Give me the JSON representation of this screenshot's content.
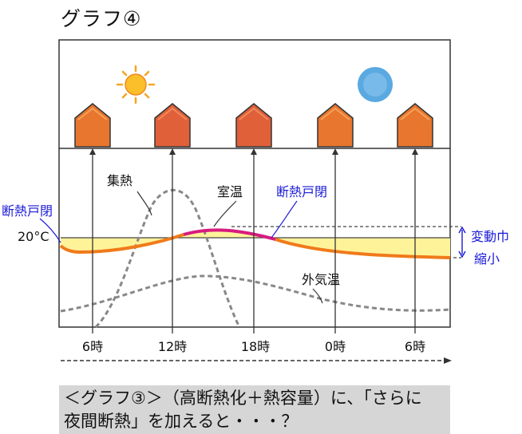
{
  "title": "グラフ④",
  "labels": {
    "collect_heat": "集熱",
    "room_temp": "室温",
    "insulated_shutter_close_right": "断熱戸閉",
    "insulated_shutter_close_left": "断熱戸閉",
    "temp_20": "20°C",
    "outside_temp": "外気温",
    "variation_1": "変動巾",
    "variation_2": "縮小"
  },
  "icons": {
    "sun": "sun-icon",
    "moon": "moon-icon",
    "house": "house-icon"
  },
  "colors": {
    "room_temp_orange": "#f07a1a",
    "room_temp_magenta": "#d81b7f",
    "band_yellow": "#fff39a",
    "house_fill": "#e8762e",
    "annotation_blue": "#1a1ad8",
    "moon_blue": "#5aa9e0"
  },
  "time_axis": {
    "ticks": [
      "6時",
      "12時",
      "18時",
      "0時",
      "6時"
    ]
  },
  "caption": {
    "line1": "＜グラフ③＞（高断熱化＋熱容量）に、「さらに",
    "line2": "夜間断熱」を加えると・・・？"
  }
}
